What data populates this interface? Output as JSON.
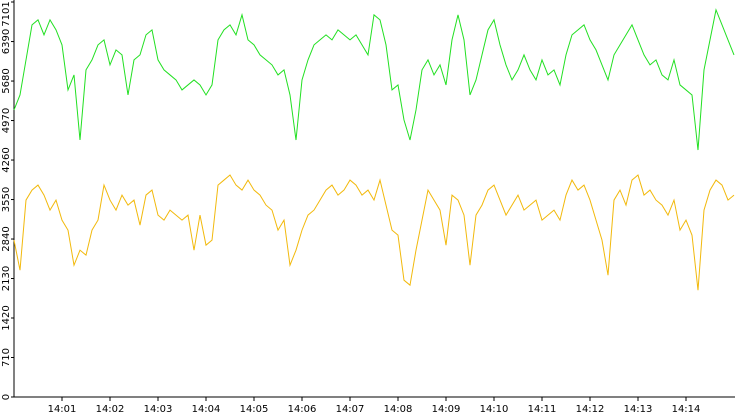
{
  "chart_data": {
    "type": "line",
    "categories": [
      null,
      null,
      null,
      null,
      null,
      null,
      null,
      null,
      "14:01",
      null,
      null,
      null,
      null,
      null,
      null,
      null,
      "14:02",
      null,
      null,
      null,
      null,
      null,
      null,
      null,
      "14:03",
      null,
      null,
      null,
      null,
      null,
      null,
      null,
      "14:04",
      null,
      null,
      null,
      null,
      null,
      null,
      null,
      "14:05",
      null,
      null,
      null,
      null,
      null,
      null,
      null,
      "14:06",
      null,
      null,
      null,
      null,
      null,
      null,
      null,
      "14:07",
      null,
      null,
      null,
      null,
      null,
      null,
      null,
      "14:08",
      null,
      null,
      null,
      null,
      null,
      null,
      null,
      "14:09",
      null,
      null,
      null,
      null,
      null,
      null,
      null,
      "14:10",
      null,
      null,
      null,
      null,
      null,
      null,
      null,
      "14:11",
      null,
      null,
      null,
      null,
      null,
      null,
      null,
      "14:12",
      null,
      null,
      null,
      null,
      null,
      null,
      null,
      "14:13",
      null,
      null,
      null,
      null,
      null,
      null,
      null,
      "14:14",
      null,
      null,
      null,
      null,
      null,
      null,
      null,
      null
    ],
    "series": [
      {
        "color": "#22e022",
        "values": [
          5160,
          5430,
          6060,
          6690,
          6780,
          6510,
          6780,
          6600,
          6330,
          5520,
          5790,
          4620,
          5880,
          6060,
          6330,
          6420,
          5970,
          6240,
          6150,
          5430,
          6060,
          6150,
          6510,
          6600,
          6060,
          5880,
          5790,
          5700,
          5520,
          5610,
          5700,
          5610,
          5430,
          5610,
          6420,
          6600,
          6690,
          6510,
          6870,
          6420,
          6330,
          6150,
          6060,
          5970,
          5790,
          5880,
          5430,
          4620,
          5700,
          6060,
          6330,
          6420,
          6510,
          6420,
          6600,
          6510,
          6420,
          6510,
          6330,
          6150,
          6870,
          6780,
          6330,
          5520,
          5610,
          4980,
          4620,
          5160,
          5880,
          6060,
          5790,
          5970,
          5610,
          6420,
          6870,
          6420,
          5430,
          5700,
          6150,
          6600,
          6780,
          6330,
          5970,
          5700,
          5880,
          6150,
          5880,
          5700,
          6060,
          5790,
          5880,
          5610,
          6150,
          6510,
          6600,
          6690,
          6420,
          6240,
          5970,
          5700,
          6150,
          6330,
          6510,
          6690,
          6420,
          6150,
          5970,
          6060,
          5790,
          5700,
          6060,
          5610,
          5520,
          5430,
          4440,
          5880,
          6420,
          6960,
          6690,
          6420,
          6150
        ]
      },
      {
        "color": "#f2b90c",
        "values": [
          2820,
          2280,
          3540,
          3720,
          3810,
          3630,
          3360,
          3540,
          3180,
          3000,
          2370,
          2640,
          2550,
          3000,
          3180,
          3810,
          3540,
          3360,
          3630,
          3450,
          3540,
          3090,
          3630,
          3720,
          3270,
          3180,
          3360,
          3270,
          3180,
          3270,
          2640,
          3270,
          2730,
          2820,
          3810,
          3900,
          3990,
          3810,
          3720,
          3900,
          3720,
          3630,
          3450,
          3360,
          3000,
          3180,
          2370,
          2640,
          3000,
          3270,
          3360,
          3540,
          3720,
          3810,
          3630,
          3720,
          3900,
          3810,
          3630,
          3720,
          3540,
          3900,
          3450,
          3000,
          2910,
          2100,
          2010,
          2640,
          3180,
          3720,
          3540,
          3360,
          2730,
          3630,
          3540,
          3270,
          2370,
          3270,
          3450,
          3720,
          3810,
          3540,
          3270,
          3450,
          3630,
          3360,
          3450,
          3540,
          3180,
          3270,
          3360,
          3180,
          3630,
          3900,
          3720,
          3810,
          3540,
          3180,
          2820,
          2190,
          3540,
          3720,
          3450,
          3900,
          3990,
          3630,
          3720,
          3540,
          3450,
          3270,
          3540,
          3000,
          3180,
          2910,
          1920,
          3360,
          3720,
          3900,
          3810,
          3540,
          3630
        ]
      }
    ],
    "ylim": [
      0,
      7101
    ],
    "yticks": [
      0,
      710,
      1420,
      2130,
      2840,
      3550,
      4260,
      4970,
      5680,
      6390,
      7101
    ],
    "grid": false
  }
}
